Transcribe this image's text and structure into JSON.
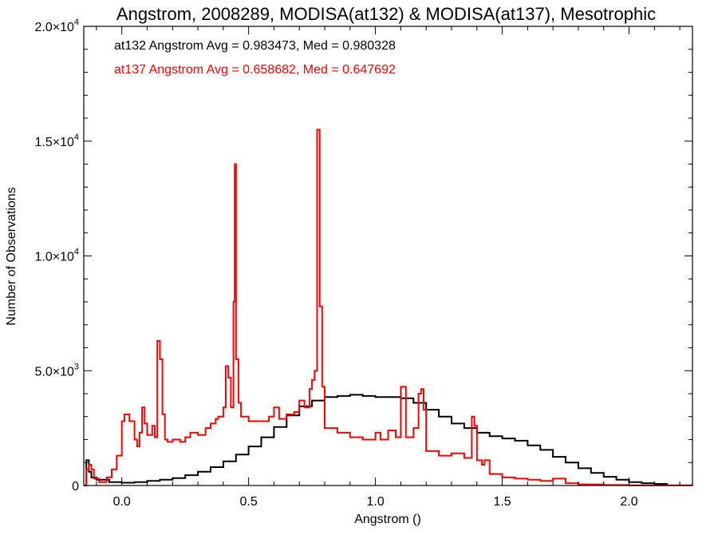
{
  "chart_data": {
    "type": "histogram",
    "title": "Angstrom, 2008289, MODISA(at132) & MODISA(at137), Mesotrophic",
    "xlabel": "Angstrom ()",
    "ylabel": "Number of Observations",
    "xlim": [
      -0.15,
      2.25
    ],
    "ylim": [
      0,
      20000
    ],
    "x_ticks": [
      {
        "value": 0.0,
        "label": "0.0"
      },
      {
        "value": 0.5,
        "label": "0.5"
      },
      {
        "value": 1.0,
        "label": "1.0"
      },
      {
        "value": 1.5,
        "label": "1.5"
      },
      {
        "value": 2.0,
        "label": "2.0"
      }
    ],
    "y_ticks": [
      {
        "value": 0,
        "mantissa": "0",
        "exp": ""
      },
      {
        "value": 5000,
        "mantissa": "5.0×10",
        "exp": "3"
      },
      {
        "value": 10000,
        "mantissa": "1.0×10",
        "exp": "4"
      },
      {
        "value": 15000,
        "mantissa": "1.5×10",
        "exp": "4"
      },
      {
        "value": 20000,
        "mantissa": "2.0×10",
        "exp": "4"
      }
    ],
    "annotations": [
      {
        "text": "at132 Angstrom Avg = 0.983473, Med = 0.980328",
        "color": "#000000"
      },
      {
        "text": "at137 Angstrom Avg = 0.658682, Med = 0.647692",
        "color": "#ff0000"
      }
    ],
    "series": [
      {
        "color": "#000000",
        "points": [
          [
            -0.15,
            0
          ],
          [
            -0.14,
            1100
          ],
          [
            -0.13,
            600
          ],
          [
            -0.12,
            350
          ],
          [
            -0.1,
            250
          ],
          [
            -0.05,
            150
          ],
          [
            0.0,
            120
          ],
          [
            0.05,
            150
          ],
          [
            0.1,
            200
          ],
          [
            0.15,
            250
          ],
          [
            0.2,
            320
          ],
          [
            0.25,
            450
          ],
          [
            0.3,
            600
          ],
          [
            0.35,
            800
          ],
          [
            0.4,
            1050
          ],
          [
            0.45,
            1350
          ],
          [
            0.5,
            1700
          ],
          [
            0.55,
            2100
          ],
          [
            0.6,
            2550
          ],
          [
            0.65,
            3050
          ],
          [
            0.7,
            3450
          ],
          [
            0.75,
            3700
          ],
          [
            0.8,
            3850
          ],
          [
            0.85,
            3900
          ],
          [
            0.9,
            3950
          ],
          [
            0.95,
            3900
          ],
          [
            1.0,
            3850
          ],
          [
            1.05,
            3850
          ],
          [
            1.1,
            3800
          ],
          [
            1.15,
            3600
          ],
          [
            1.2,
            3300
          ],
          [
            1.25,
            3000
          ],
          [
            1.3,
            2700
          ],
          [
            1.35,
            2500
          ],
          [
            1.4,
            2300
          ],
          [
            1.45,
            2150
          ],
          [
            1.5,
            2050
          ],
          [
            1.55,
            1950
          ],
          [
            1.6,
            1750
          ],
          [
            1.65,
            1550
          ],
          [
            1.7,
            1250
          ],
          [
            1.75,
            1000
          ],
          [
            1.8,
            750
          ],
          [
            1.85,
            550
          ],
          [
            1.9,
            380
          ],
          [
            1.95,
            250
          ],
          [
            2.0,
            150
          ],
          [
            2.05,
            100
          ],
          [
            2.1,
            70
          ],
          [
            2.15,
            50
          ]
        ]
      },
      {
        "color": "#ff0000",
        "points": [
          [
            -0.15,
            0
          ],
          [
            -0.14,
            700
          ],
          [
            -0.13,
            900
          ],
          [
            -0.12,
            700
          ],
          [
            -0.11,
            300
          ],
          [
            -0.09,
            150
          ],
          [
            -0.06,
            350
          ],
          [
            -0.04,
            700
          ],
          [
            -0.02,
            1300
          ],
          [
            0.0,
            2800
          ],
          [
            0.01,
            3100
          ],
          [
            0.03,
            2800
          ],
          [
            0.05,
            2000
          ],
          [
            0.06,
            1700
          ],
          [
            0.07,
            2300
          ],
          [
            0.08,
            3400
          ],
          [
            0.09,
            2700
          ],
          [
            0.1,
            2200
          ],
          [
            0.12,
            2600
          ],
          [
            0.13,
            2100
          ],
          [
            0.14,
            6300
          ],
          [
            0.15,
            5500
          ],
          [
            0.16,
            3100
          ],
          [
            0.17,
            2000
          ],
          [
            0.18,
            1900
          ],
          [
            0.2,
            2000
          ],
          [
            0.23,
            1900
          ],
          [
            0.25,
            2100
          ],
          [
            0.27,
            2300
          ],
          [
            0.3,
            2200
          ],
          [
            0.33,
            2500
          ],
          [
            0.35,
            2700
          ],
          [
            0.37,
            2900
          ],
          [
            0.38,
            3000
          ],
          [
            0.4,
            3400
          ],
          [
            0.41,
            5200
          ],
          [
            0.42,
            4700
          ],
          [
            0.43,
            3400
          ],
          [
            0.44,
            8000
          ],
          [
            0.445,
            14000
          ],
          [
            0.45,
            5500
          ],
          [
            0.46,
            3600
          ],
          [
            0.47,
            3000
          ],
          [
            0.5,
            2800
          ],
          [
            0.55,
            2800
          ],
          [
            0.58,
            3000
          ],
          [
            0.6,
            3400
          ],
          [
            0.62,
            2900
          ],
          [
            0.65,
            3100
          ],
          [
            0.68,
            3200
          ],
          [
            0.7,
            3700
          ],
          [
            0.72,
            3400
          ],
          [
            0.74,
            4200
          ],
          [
            0.75,
            4600
          ],
          [
            0.76,
            5000
          ],
          [
            0.77,
            15500
          ],
          [
            0.78,
            7800
          ],
          [
            0.79,
            4300
          ],
          [
            0.8,
            2500
          ],
          [
            0.85,
            2300
          ],
          [
            0.9,
            2100
          ],
          [
            0.95,
            2000
          ],
          [
            1.0,
            2300
          ],
          [
            1.02,
            2000
          ],
          [
            1.05,
            2400
          ],
          [
            1.08,
            2100
          ],
          [
            1.1,
            4300
          ],
          [
            1.12,
            2100
          ],
          [
            1.15,
            2500
          ],
          [
            1.17,
            4000
          ],
          [
            1.18,
            4200
          ],
          [
            1.19,
            3300
          ],
          [
            1.2,
            1500
          ],
          [
            1.25,
            1300
          ],
          [
            1.3,
            1400
          ],
          [
            1.35,
            1200
          ],
          [
            1.38,
            3000
          ],
          [
            1.39,
            2600
          ],
          [
            1.4,
            1100
          ],
          [
            1.42,
            900
          ],
          [
            1.43,
            1100
          ],
          [
            1.45,
            500
          ],
          [
            1.5,
            350
          ],
          [
            1.55,
            300
          ],
          [
            1.6,
            250
          ],
          [
            1.65,
            200
          ],
          [
            1.7,
            300
          ],
          [
            1.75,
            100
          ],
          [
            1.8,
            50
          ],
          [
            1.9,
            20
          ],
          [
            2.0,
            10
          ],
          [
            2.25,
            0
          ]
        ]
      }
    ]
  }
}
